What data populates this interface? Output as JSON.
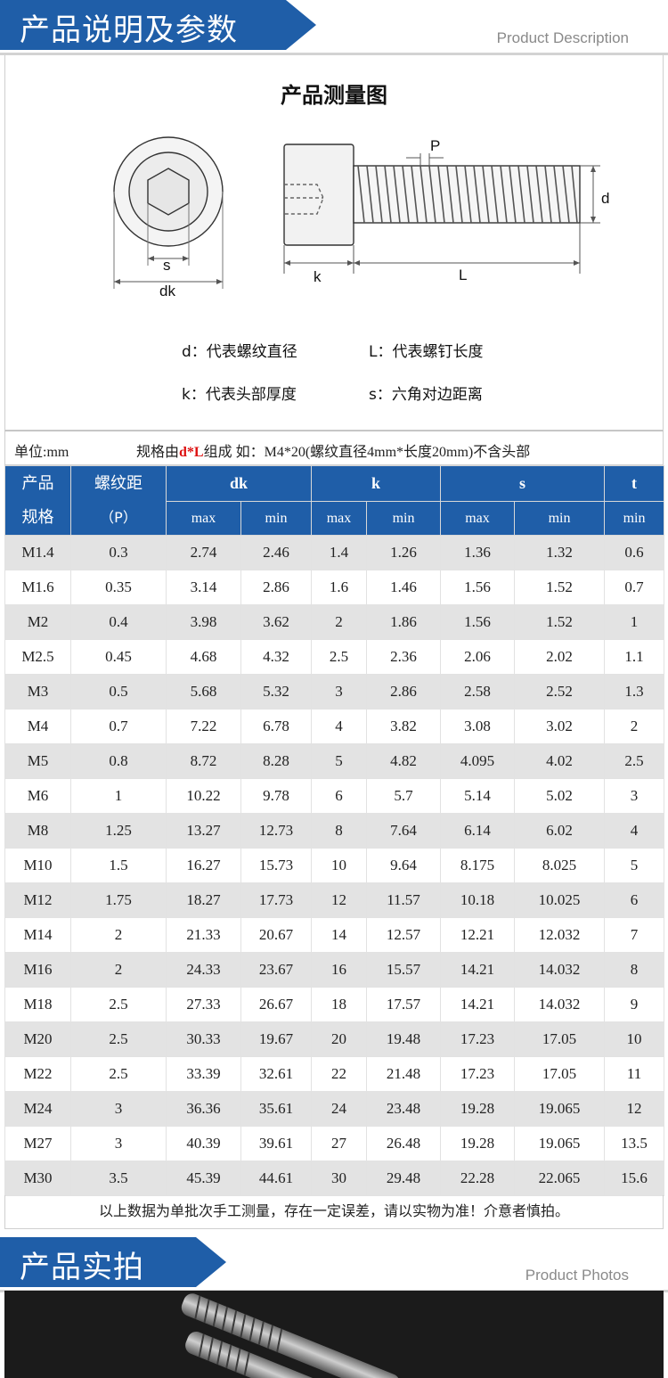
{
  "section1": {
    "title": "产品说明及参数",
    "subtitle": "Product Description"
  },
  "diagram": {
    "title": "产品测量图",
    "labels": {
      "s": "s",
      "dk": "dk",
      "p": "P",
      "d": "d",
      "k": "k",
      "l": "L"
    },
    "legend": [
      {
        "key": "d：",
        "text": "代表螺纹直径"
      },
      {
        "key": "L：",
        "text": "代表螺钉长度"
      },
      {
        "key": "k：",
        "text": "代表头部厚度"
      },
      {
        "key": "s：",
        "text": "六角对边距离"
      }
    ]
  },
  "spec_line": {
    "unit": "单位:mm",
    "prefix": "规格由",
    "highlight": "d*L",
    "suffix": "组成 如：M4*20(螺纹直径4mm*长度20mm)不含头部"
  },
  "table": {
    "spec_header": [
      "产品",
      "规格"
    ],
    "pitch_header": [
      "螺纹距",
      "（P）"
    ],
    "groups": [
      "dk",
      "k",
      "s",
      "t"
    ],
    "sub": [
      "max",
      "min",
      "max",
      "min",
      "max",
      "min",
      "min"
    ],
    "rows": [
      [
        "M1.4",
        "0.3",
        "2.74",
        "2.46",
        "1.4",
        "1.26",
        "1.36",
        "1.32",
        "0.6"
      ],
      [
        "M1.6",
        "0.35",
        "3.14",
        "2.86",
        "1.6",
        "1.46",
        "1.56",
        "1.52",
        "0.7"
      ],
      [
        "M2",
        "0.4",
        "3.98",
        "3.62",
        "2",
        "1.86",
        "1.56",
        "1.52",
        "1"
      ],
      [
        "M2.5",
        "0.45",
        "4.68",
        "4.32",
        "2.5",
        "2.36",
        "2.06",
        "2.02",
        "1.1"
      ],
      [
        "M3",
        "0.5",
        "5.68",
        "5.32",
        "3",
        "2.86",
        "2.58",
        "2.52",
        "1.3"
      ],
      [
        "M4",
        "0.7",
        "7.22",
        "6.78",
        "4",
        "3.82",
        "3.08",
        "3.02",
        "2"
      ],
      [
        "M5",
        "0.8",
        "8.72",
        "8.28",
        "5",
        "4.82",
        "4.095",
        "4.02",
        "2.5"
      ],
      [
        "M6",
        "1",
        "10.22",
        "9.78",
        "6",
        "5.7",
        "5.14",
        "5.02",
        "3"
      ],
      [
        "M8",
        "1.25",
        "13.27",
        "12.73",
        "8",
        "7.64",
        "6.14",
        "6.02",
        "4"
      ],
      [
        "M10",
        "1.5",
        "16.27",
        "15.73",
        "10",
        "9.64",
        "8.175",
        "8.025",
        "5"
      ],
      [
        "M12",
        "1.75",
        "18.27",
        "17.73",
        "12",
        "11.57",
        "10.18",
        "10.025",
        "6"
      ],
      [
        "M14",
        "2",
        "21.33",
        "20.67",
        "14",
        "12.57",
        "12.21",
        "12.032",
        "7"
      ],
      [
        "M16",
        "2",
        "24.33",
        "23.67",
        "16",
        "15.57",
        "14.21",
        "14.032",
        "8"
      ],
      [
        "M18",
        "2.5",
        "27.33",
        "26.67",
        "18",
        "17.57",
        "14.21",
        "14.032",
        "9"
      ],
      [
        "M20",
        "2.5",
        "30.33",
        "19.67",
        "20",
        "19.48",
        "17.23",
        "17.05",
        "10"
      ],
      [
        "M22",
        "2.5",
        "33.39",
        "32.61",
        "22",
        "21.48",
        "17.23",
        "17.05",
        "11"
      ],
      [
        "M24",
        "3",
        "36.36",
        "35.61",
        "24",
        "23.48",
        "19.28",
        "19.065",
        "12"
      ],
      [
        "M27",
        "3",
        "40.39",
        "39.61",
        "27",
        "26.48",
        "19.28",
        "19.065",
        "13.5"
      ],
      [
        "M30",
        "3.5",
        "45.39",
        "44.61",
        "30",
        "29.48",
        "22.28",
        "22.065",
        "15.6"
      ]
    ]
  },
  "note": "以上数据为单批次手工测量，存在一定误差，请以实物为准！介意者慎拍。",
  "section2": {
    "title": "产品实拍",
    "subtitle": "Product Photos"
  }
}
